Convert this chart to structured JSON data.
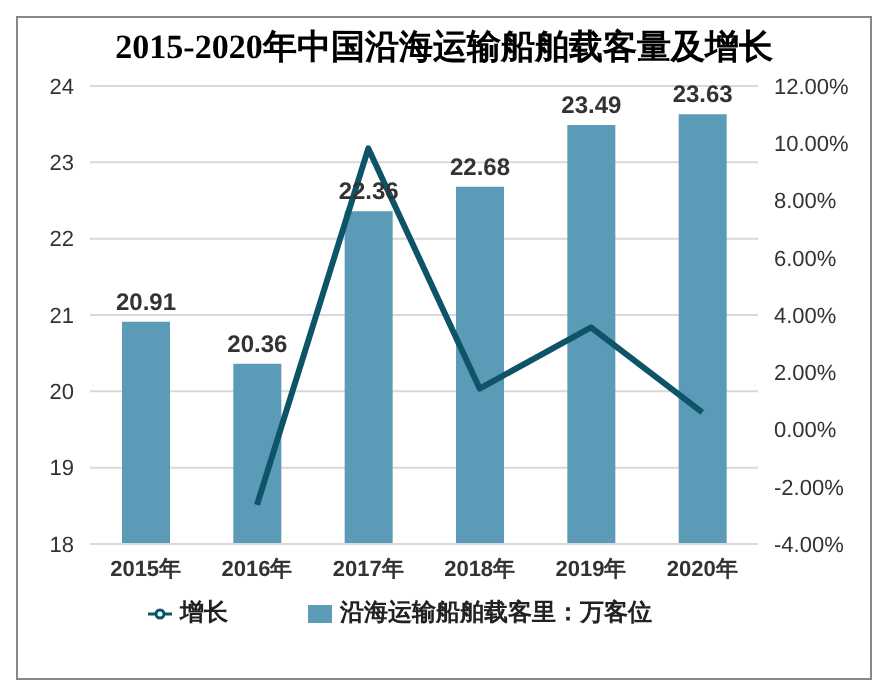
{
  "chart_data": {
    "type": "bar",
    "title": "2015-2020年中国沿海运输船舶载客量及增长",
    "categories": [
      "2015年",
      "2016年",
      "2017年",
      "2018年",
      "2019年",
      "2020年"
    ],
    "series": [
      {
        "name": "沿海运输船舶载客里：万客位",
        "color": "#5b9bb8",
        "values": [
          20.91,
          20.36,
          22.36,
          22.68,
          23.49,
          23.63
        ],
        "value_labels": [
          "20.91",
          "20.36",
          "22.36",
          "22.68",
          "23.49",
          "23.63"
        ]
      },
      {
        "name": "增长",
        "type": "line",
        "axis": "y2",
        "color": "#0e5468",
        "values": [
          null,
          -2.63,
          9.82,
          1.43,
          3.57,
          0.6
        ]
      }
    ],
    "ylim": [
      18,
      24
    ],
    "yticks": [
      18,
      19,
      20,
      21,
      22,
      23,
      24
    ],
    "y2lim": [
      -4,
      12
    ],
    "y2ticks": [
      {
        "value": -4,
        "label": "-4.00%"
      },
      {
        "value": -2,
        "label": "-2.00%"
      },
      {
        "value": 0,
        "label": "0.00%"
      },
      {
        "value": 2,
        "label": "2.00%"
      },
      {
        "value": 4,
        "label": "4.00%"
      },
      {
        "value": 6,
        "label": "6.00%"
      },
      {
        "value": 8,
        "label": "8.00%"
      },
      {
        "value": 10,
        "label": "10.00%"
      },
      {
        "value": 12,
        "label": "12.00%"
      }
    ],
    "grid": "y",
    "legend": "bottom",
    "marker": "none",
    "line_style": "solid"
  }
}
